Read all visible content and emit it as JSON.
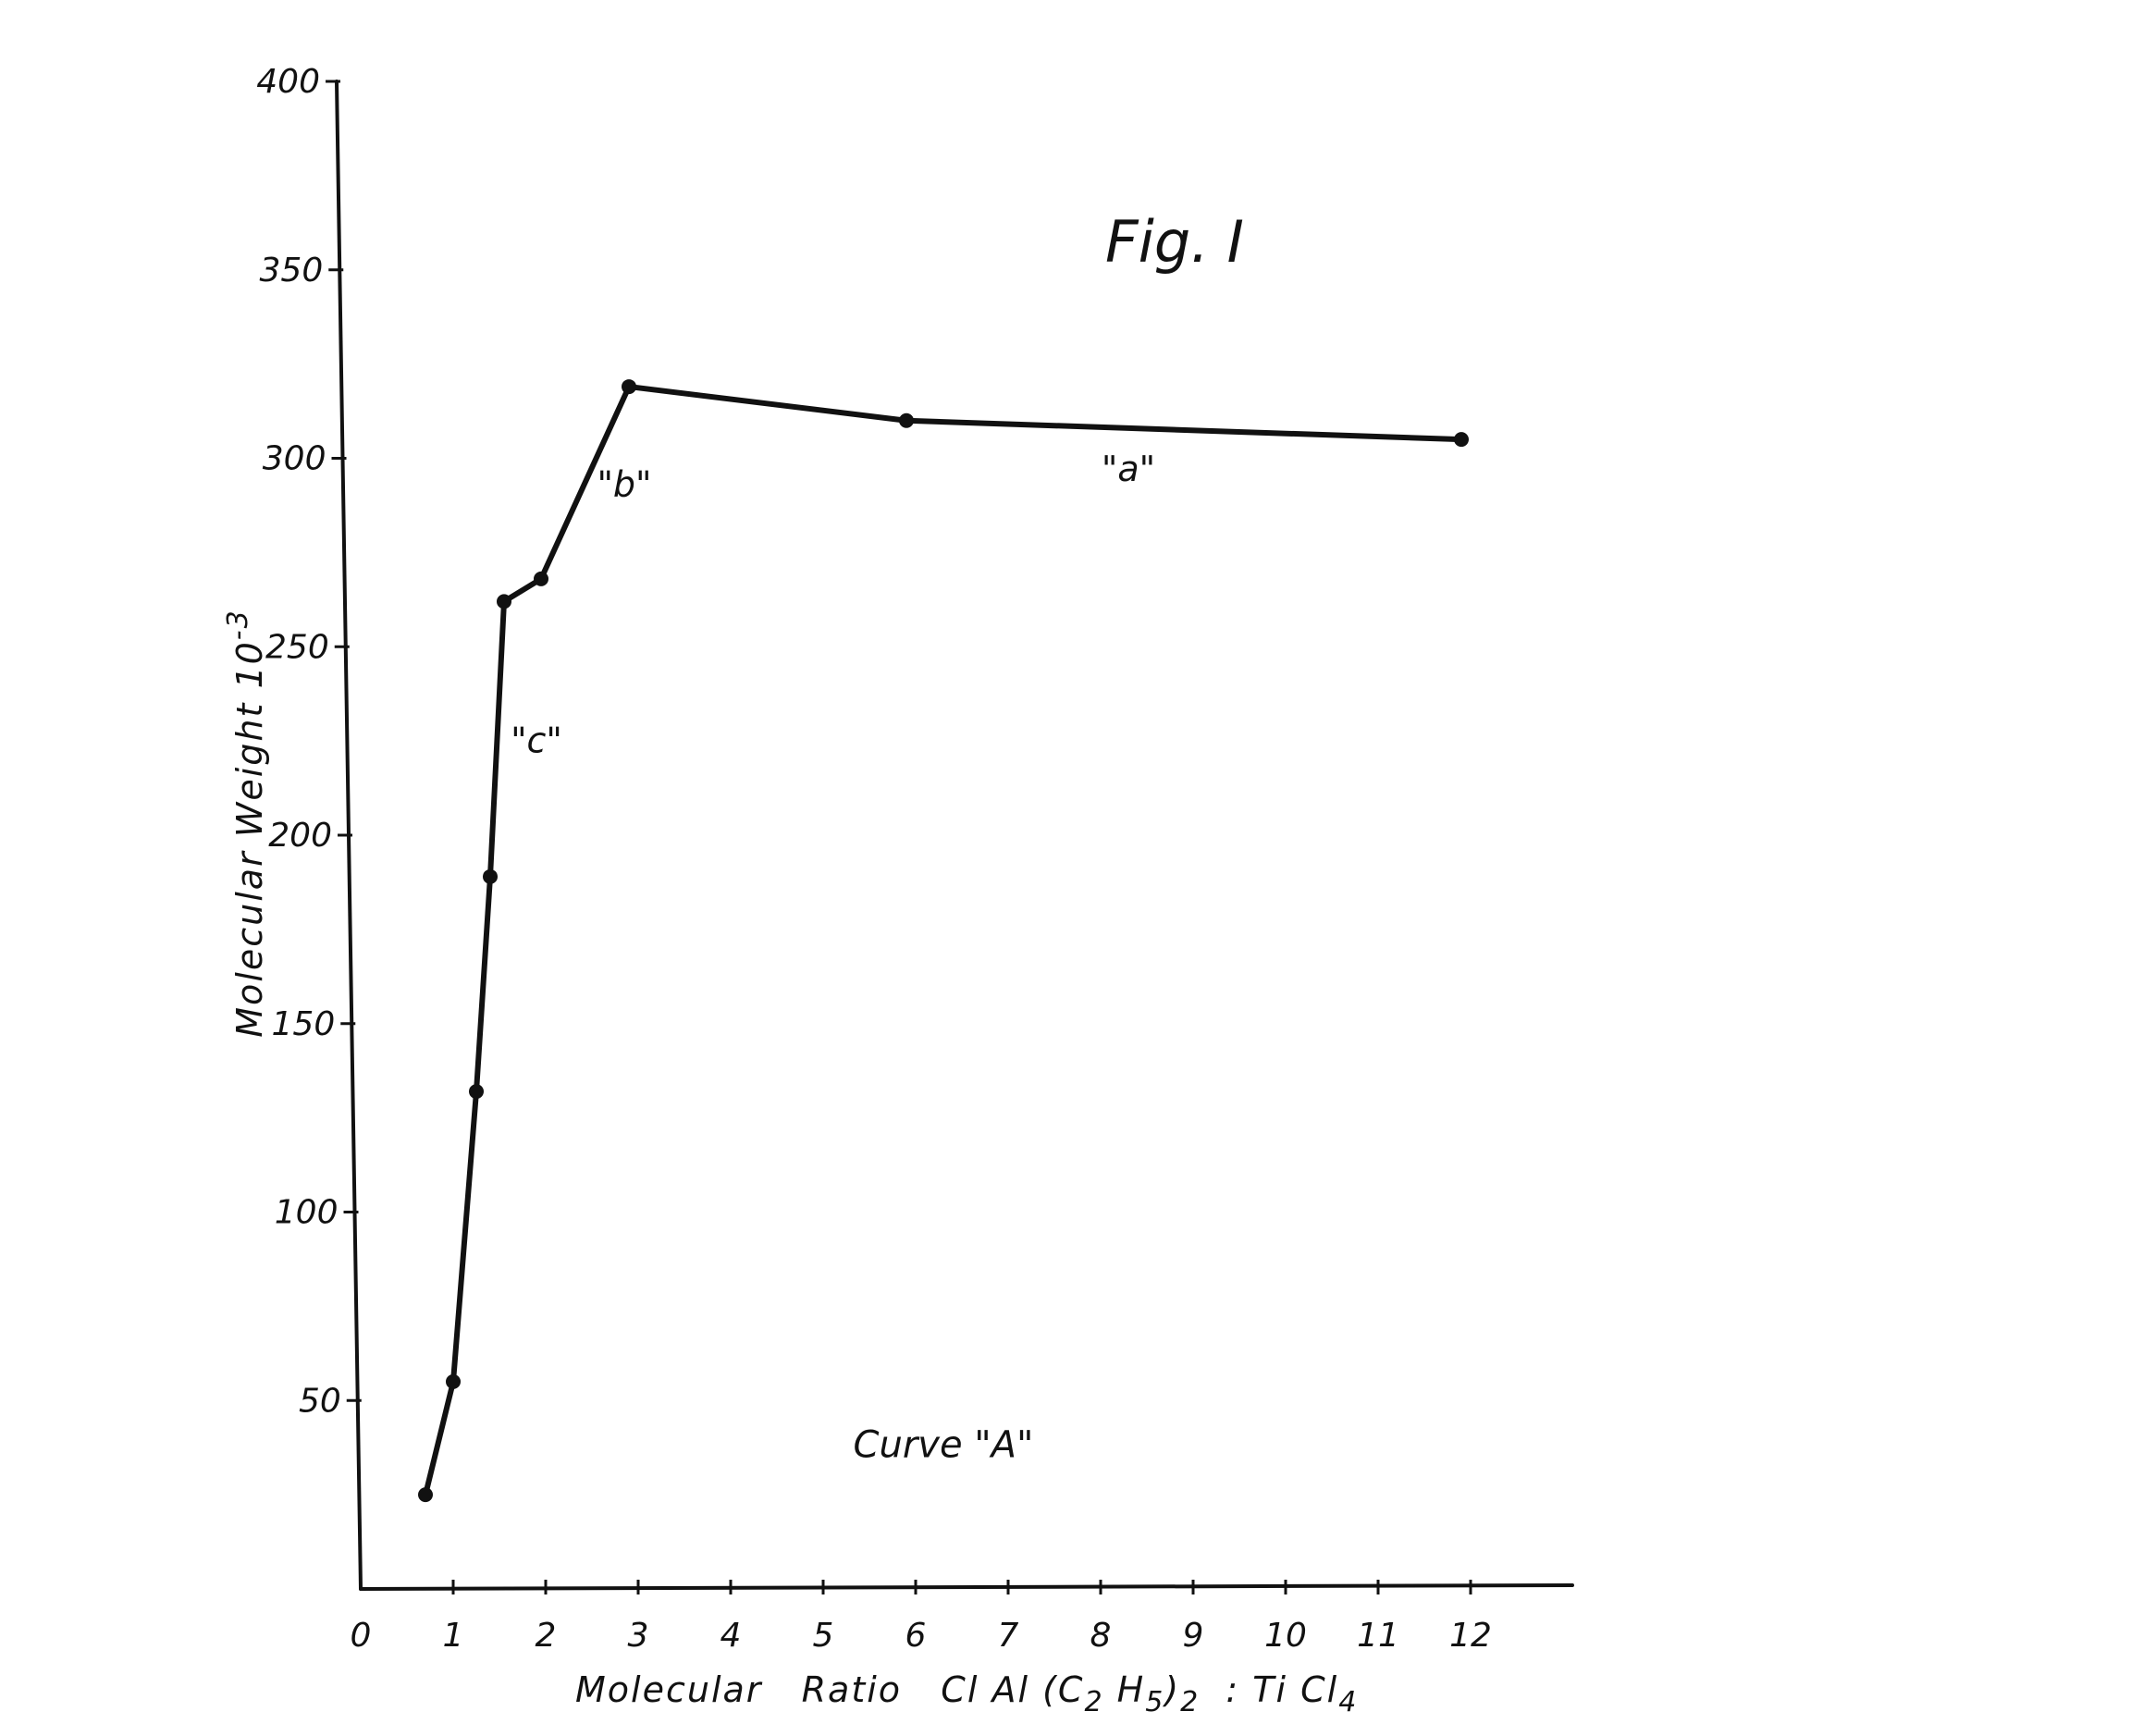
{
  "chart_data": {
    "type": "line",
    "title": "Fig. I",
    "xlabel_parts": {
      "prefix": "Molecular   Ratio   Cl Al (C",
      "sub1": "2",
      "mid1": " H",
      "sub2": "5",
      "mid2": ")",
      "sub3": "2",
      "mid3": "  : Ti Cl",
      "sub4": "4"
    },
    "ylabel": "Molecular  Weight  10",
    "ylabel_sup": "-3",
    "xlim": [
      0,
      13.1
    ],
    "ylim": [
      0,
      400
    ],
    "x_ticks": [
      0,
      1,
      2,
      3,
      4,
      5,
      6,
      7,
      8,
      9,
      10,
      11,
      12
    ],
    "x_tick_labels": [
      "0",
      "1",
      "2",
      "3",
      "4",
      "5",
      "6",
      "7",
      "8",
      "9",
      "10",
      "11",
      "12"
    ],
    "y_ticks": [
      50,
      100,
      150,
      200,
      250,
      300,
      350,
      400
    ],
    "y_tick_labels": [
      "50",
      "100",
      "150",
      "200",
      "250",
      "300",
      "350",
      "400"
    ],
    "grid": false,
    "legend": "none",
    "series": [
      {
        "x": [
          0.7,
          1.0,
          1.25,
          1.4,
          1.55,
          1.95,
          2.9,
          5.9,
          11.9
        ],
        "y": [
          25,
          55,
          132,
          189,
          262,
          268,
          319,
          310,
          305
        ]
      }
    ],
    "annotations": [
      {
        "text": "\"a\"",
        "x": 8.3,
        "y": 294
      },
      {
        "text": "\"b\"",
        "x": 2.85,
        "y": 290
      },
      {
        "text": "\"c\"",
        "x": 1.9,
        "y": 222
      }
    ],
    "caption": {
      "text": "Curve \"A\"",
      "x": 6.3,
      "y": 35
    },
    "colors": {
      "line": "#111111",
      "axis": "#111111",
      "background": "#ffffff"
    }
  }
}
